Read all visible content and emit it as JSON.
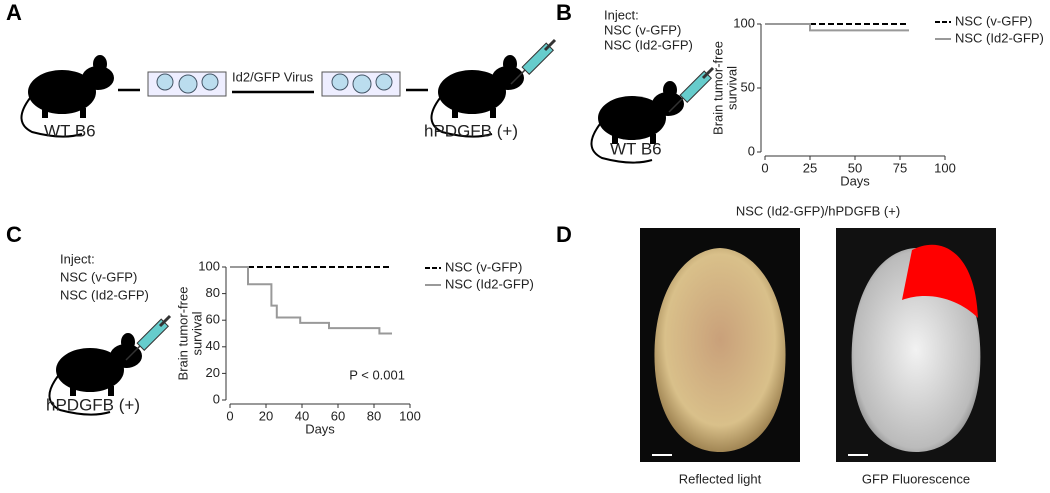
{
  "panels": {
    "a": {
      "label": "A",
      "mouse_left": "WT B6",
      "arrow_label": "Id2/GFP Virus",
      "mouse_right": "hPDGFB (+)"
    },
    "b": {
      "label": "B",
      "inject": "Inject:",
      "groups": [
        "NSC (v-GFP)",
        "NSC (Id2-GFP)"
      ],
      "mouse": "WT B6"
    },
    "c": {
      "label": "C",
      "inject": "Inject:",
      "groups": [
        "NSC (v-GFP)",
        "NSC (Id2-GFP)"
      ],
      "mouse": "hPDGFB (+)"
    },
    "d": {
      "label": "D",
      "title": "NSC (Id2-GFP)/hPDGFB (+)",
      "captions": [
        "Reflected light",
        "GFP Fluorescence"
      ]
    }
  },
  "chart_data": [
    {
      "type": "line",
      "step": true,
      "xlabel": "Days",
      "ylabel": [
        "Brain tumor-free",
        "survival"
      ],
      "xlim": [
        0,
        100
      ],
      "xticks": [
        0,
        25,
        50,
        75,
        100
      ],
      "ylim": [
        0,
        100
      ],
      "yticks": [
        0,
        50,
        100
      ],
      "series": [
        {
          "name": "NSC (v-GFP)",
          "color": "#000000",
          "dash": true,
          "x": [
            0,
            25,
            80
          ],
          "values": [
            100,
            100,
            100
          ]
        },
        {
          "name": "NSC (Id2-GFP)",
          "color": "#999999",
          "dash": false,
          "x": [
            0,
            25,
            80
          ],
          "values": [
            100,
            95,
            95
          ]
        }
      ]
    },
    {
      "type": "line",
      "step": true,
      "xlabel": "Days",
      "ylabel": [
        "Brain tumor-free",
        "survival"
      ],
      "annotation": "P < 0.001",
      "xlim": [
        0,
        100
      ],
      "xticks": [
        0,
        20,
        40,
        60,
        80,
        100
      ],
      "ylim": [
        0,
        100
      ],
      "yticks": [
        0,
        20,
        40,
        60,
        80,
        100
      ],
      "series": [
        {
          "name": "NSC (v-GFP)",
          "color": "#000000",
          "dash": true,
          "x": [
            0,
            10,
            23,
            26,
            39,
            55,
            83,
            90
          ],
          "values": [
            100,
            100,
            100,
            100,
            100,
            100,
            100,
            100
          ]
        },
        {
          "name": "NSC (Id2-GFP)",
          "color": "#999999",
          "dash": false,
          "x": [
            0,
            10,
            23,
            26,
            39,
            55,
            83,
            90
          ],
          "values": [
            100,
            87,
            71,
            62,
            58,
            54,
            50,
            50
          ]
        }
      ]
    }
  ]
}
